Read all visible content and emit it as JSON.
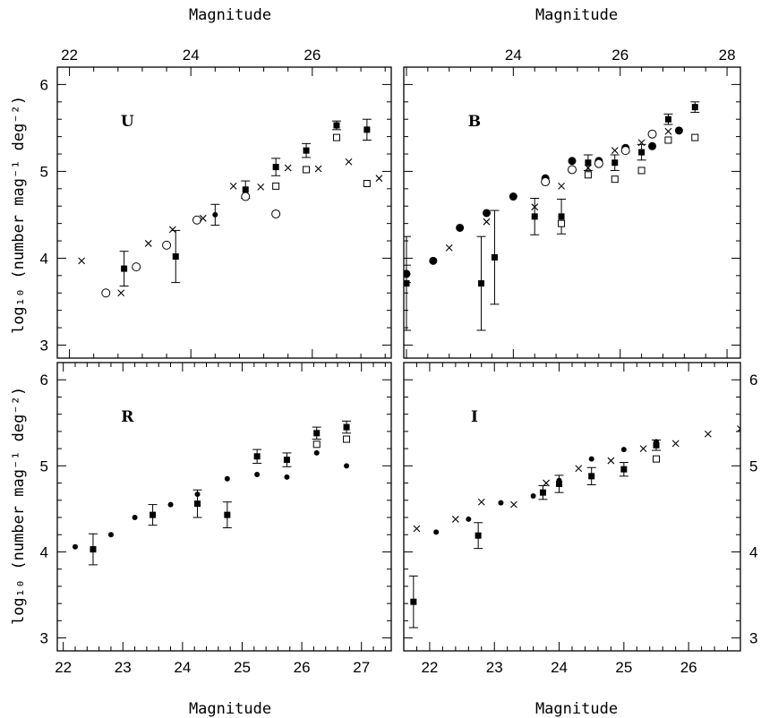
{
  "figure": {
    "top_xlabel_left": "Magnitude",
    "top_xlabel_right": "Magnitude",
    "bottom_xlabel_left": "Magnitude",
    "bottom_xlabel_right": "Magnitude",
    "ylabel_top": "log₁₀ (number mag⁻¹ deg⁻²)",
    "ylabel_bottom": "log₁₀ (number mag⁻¹ deg⁻²)"
  },
  "chart_data": [
    {
      "type": "scatter",
      "panel_label": "U",
      "xlabel": "Magnitude",
      "x_axis_position": "top",
      "xlim": [
        21.8,
        27.3
      ],
      "ylim": [
        2.85,
        6.2
      ],
      "xticks": [
        22,
        24,
        26
      ],
      "yticks": [
        3,
        4,
        5,
        6
      ],
      "y_axis_labels": "left",
      "series": [
        {
          "marker": "filled-square",
          "points": [
            {
              "x": 22.9,
              "y": 3.88,
              "err": 0.2
            },
            {
              "x": 23.75,
              "y": 4.02,
              "err": 0.3
            },
            {
              "x": 24.9,
              "y": 4.79,
              "err": 0.1
            },
            {
              "x": 25.4,
              "y": 5.05,
              "err": 0.1
            },
            {
              "x": 25.9,
              "y": 5.24,
              "err": 0.08
            },
            {
              "x": 26.4,
              "y": 5.53,
              "err": 0.05
            },
            {
              "x": 26.9,
              "y": 5.48,
              "err": 0.12
            }
          ]
        },
        {
          "marker": "open-square",
          "points": [
            {
              "x": 25.4,
              "y": 4.83
            },
            {
              "x": 25.9,
              "y": 5.02
            },
            {
              "x": 26.4,
              "y": 5.39
            },
            {
              "x": 26.9,
              "y": 4.86
            }
          ]
        },
        {
          "marker": "filled-circle",
          "points": [
            {
              "x": 24.4,
              "y": 4.5,
              "err": 0.12
            }
          ]
        },
        {
          "marker": "open-circle",
          "points": [
            {
              "x": 22.6,
              "y": 3.6
            },
            {
              "x": 23.1,
              "y": 3.9
            },
            {
              "x": 23.6,
              "y": 4.15
            },
            {
              "x": 24.1,
              "y": 4.44
            },
            {
              "x": 24.9,
              "y": 4.71
            },
            {
              "x": 25.4,
              "y": 4.51
            }
          ]
        },
        {
          "marker": "cross",
          "points": [
            {
              "x": 22.2,
              "y": 3.97
            },
            {
              "x": 22.85,
              "y": 3.6
            },
            {
              "x": 23.3,
              "y": 4.17
            },
            {
              "x": 23.7,
              "y": 4.33
            },
            {
              "x": 24.2,
              "y": 4.46
            },
            {
              "x": 24.7,
              "y": 4.83
            },
            {
              "x": 25.15,
              "y": 4.82
            },
            {
              "x": 25.6,
              "y": 5.04
            },
            {
              "x": 26.1,
              "y": 5.03
            },
            {
              "x": 26.6,
              "y": 5.11
            },
            {
              "x": 27.1,
              "y": 4.92
            }
          ]
        }
      ]
    },
    {
      "type": "scatter",
      "panel_label": "B",
      "xlabel": "Magnitude",
      "x_axis_position": "top",
      "xlim": [
        21.95,
        28.25
      ],
      "ylim": [
        2.85,
        6.2
      ],
      "xticks": [
        24,
        26,
        28
      ],
      "yticks": [
        3,
        4,
        5,
        6
      ],
      "y_axis_labels": "none",
      "series": [
        {
          "marker": "filled-square",
          "points": [
            {
              "x": 22.0,
              "y": 3.71,
              "err": 0.54
            },
            {
              "x": 23.4,
              "y": 3.71,
              "err": 0.54
            },
            {
              "x": 23.65,
              "y": 4.01,
              "err": 0.54
            },
            {
              "x": 24.4,
              "y": 4.48,
              "err": 0.21
            },
            {
              "x": 24.9,
              "y": 4.48,
              "err": 0.2
            },
            {
              "x": 25.4,
              "y": 5.1,
              "err": 0.09
            },
            {
              "x": 25.9,
              "y": 5.1,
              "err": 0.09
            },
            {
              "x": 26.4,
              "y": 5.22,
              "err": 0.09
            },
            {
              "x": 26.9,
              "y": 5.6,
              "err": 0.06
            },
            {
              "x": 27.4,
              "y": 5.74,
              "err": 0.06
            }
          ]
        },
        {
          "marker": "open-square",
          "points": [
            {
              "x": 24.9,
              "y": 4.4
            },
            {
              "x": 25.4,
              "y": 4.96
            },
            {
              "x": 25.9,
              "y": 4.91
            },
            {
              "x": 26.4,
              "y": 5.01
            },
            {
              "x": 26.9,
              "y": 5.36
            },
            {
              "x": 27.4,
              "y": 5.39
            }
          ]
        },
        {
          "marker": "filled-circle",
          "points": [
            {
              "x": 22.0,
              "y": 3.82,
              "err": 0.1
            },
            {
              "x": 22.5,
              "y": 3.97
            },
            {
              "x": 23.0,
              "y": 4.35
            },
            {
              "x": 23.5,
              "y": 4.52
            },
            {
              "x": 24.0,
              "y": 4.71
            },
            {
              "x": 24.6,
              "y": 4.92
            },
            {
              "x": 25.1,
              "y": 5.12
            },
            {
              "x": 25.6,
              "y": 5.12
            },
            {
              "x": 26.1,
              "y": 5.27
            },
            {
              "x": 26.6,
              "y": 5.29
            },
            {
              "x": 27.1,
              "y": 5.47
            }
          ]
        },
        {
          "marker": "open-circle",
          "points": [
            {
              "x": 24.6,
              "y": 4.88
            },
            {
              "x": 25.1,
              "y": 5.02
            },
            {
              "x": 25.6,
              "y": 5.09
            },
            {
              "x": 26.1,
              "y": 5.24
            },
            {
              "x": 26.6,
              "y": 5.43
            }
          ]
        },
        {
          "marker": "cross",
          "points": [
            {
              "x": 22.8,
              "y": 4.12
            },
            {
              "x": 23.5,
              "y": 4.42
            },
            {
              "x": 24.4,
              "y": 4.59
            },
            {
              "x": 24.9,
              "y": 4.83
            },
            {
              "x": 25.4,
              "y": 5.04
            },
            {
              "x": 25.9,
              "y": 5.24
            },
            {
              "x": 26.4,
              "y": 5.33
            },
            {
              "x": 26.9,
              "y": 5.46
            }
          ]
        }
      ]
    },
    {
      "type": "scatter",
      "panel_label": "R",
      "xlabel": "Magnitude",
      "x_axis_position": "bottom",
      "xlim": [
        21.9,
        27.5
      ],
      "ylim": [
        2.85,
        6.2
      ],
      "xticks": [
        22,
        23,
        24,
        25,
        26,
        27
      ],
      "yticks": [
        3,
        4,
        5,
        6
      ],
      "y_axis_labels": "left",
      "series": [
        {
          "marker": "filled-square",
          "points": [
            {
              "x": 22.5,
              "y": 4.03,
              "err": 0.18
            },
            {
              "x": 23.5,
              "y": 4.43,
              "err": 0.12
            },
            {
              "x": 24.25,
              "y": 4.56,
              "err": 0.16
            },
            {
              "x": 24.75,
              "y": 4.43,
              "err": 0.15
            },
            {
              "x": 25.25,
              "y": 5.11,
              "err": 0.08
            },
            {
              "x": 25.75,
              "y": 5.07,
              "err": 0.08
            },
            {
              "x": 26.25,
              "y": 5.38,
              "err": 0.07
            },
            {
              "x": 26.75,
              "y": 5.45,
              "err": 0.07
            }
          ]
        },
        {
          "marker": "open-square",
          "points": [
            {
              "x": 26.25,
              "y": 5.25
            },
            {
              "x": 26.75,
              "y": 5.31
            }
          ]
        },
        {
          "marker": "filled-circle",
          "points": [
            {
              "x": 22.2,
              "y": 4.06
            },
            {
              "x": 22.8,
              "y": 4.2
            },
            {
              "x": 23.2,
              "y": 4.4
            },
            {
              "x": 23.8,
              "y": 4.55
            },
            {
              "x": 24.25,
              "y": 4.67
            },
            {
              "x": 24.75,
              "y": 4.85
            },
            {
              "x": 25.25,
              "y": 4.9
            },
            {
              "x": 25.75,
              "y": 4.87
            },
            {
              "x": 26.25,
              "y": 5.15
            },
            {
              "x": 26.75,
              "y": 5.0
            }
          ]
        }
      ]
    },
    {
      "type": "scatter",
      "panel_label": "I",
      "xlabel": "Magnitude",
      "x_axis_position": "bottom",
      "xlim": [
        21.6,
        26.8
      ],
      "ylim": [
        2.85,
        6.2
      ],
      "xticks": [
        22,
        23,
        24,
        25,
        26
      ],
      "yticks": [
        3,
        4,
        5,
        6
      ],
      "y_axis_labels": "right",
      "series": [
        {
          "marker": "filled-square",
          "points": [
            {
              "x": 21.75,
              "y": 3.42,
              "err": 0.3
            },
            {
              "x": 22.75,
              "y": 4.19,
              "err": 0.15
            },
            {
              "x": 23.75,
              "y": 4.69,
              "err": 0.08
            },
            {
              "x": 24.0,
              "y": 4.79,
              "err": 0.1
            },
            {
              "x": 24.5,
              "y": 4.88,
              "err": 0.1
            },
            {
              "x": 25.0,
              "y": 4.96,
              "err": 0.08
            },
            {
              "x": 25.5,
              "y": 5.24,
              "err": 0.06
            }
          ]
        },
        {
          "marker": "open-square",
          "points": [
            {
              "x": 25.5,
              "y": 5.08
            }
          ]
        },
        {
          "marker": "filled-circle",
          "points": [
            {
              "x": 22.1,
              "y": 4.23
            },
            {
              "x": 22.6,
              "y": 4.38
            },
            {
              "x": 23.1,
              "y": 4.57
            },
            {
              "x": 23.6,
              "y": 4.65
            },
            {
              "x": 24.0,
              "y": 4.83
            },
            {
              "x": 24.5,
              "y": 5.08
            },
            {
              "x": 25.0,
              "y": 5.19
            },
            {
              "x": 25.5,
              "y": 5.28
            }
          ]
        },
        {
          "marker": "cross",
          "points": [
            {
              "x": 21.8,
              "y": 4.27
            },
            {
              "x": 22.4,
              "y": 4.38
            },
            {
              "x": 22.8,
              "y": 4.58
            },
            {
              "x": 23.3,
              "y": 4.55
            },
            {
              "x": 23.8,
              "y": 4.8
            },
            {
              "x": 24.3,
              "y": 4.97
            },
            {
              "x": 24.8,
              "y": 5.06
            },
            {
              "x": 25.3,
              "y": 5.2
            },
            {
              "x": 25.8,
              "y": 5.26
            },
            {
              "x": 26.3,
              "y": 5.37
            },
            {
              "x": 26.8,
              "y": 5.43
            }
          ]
        }
      ]
    }
  ]
}
